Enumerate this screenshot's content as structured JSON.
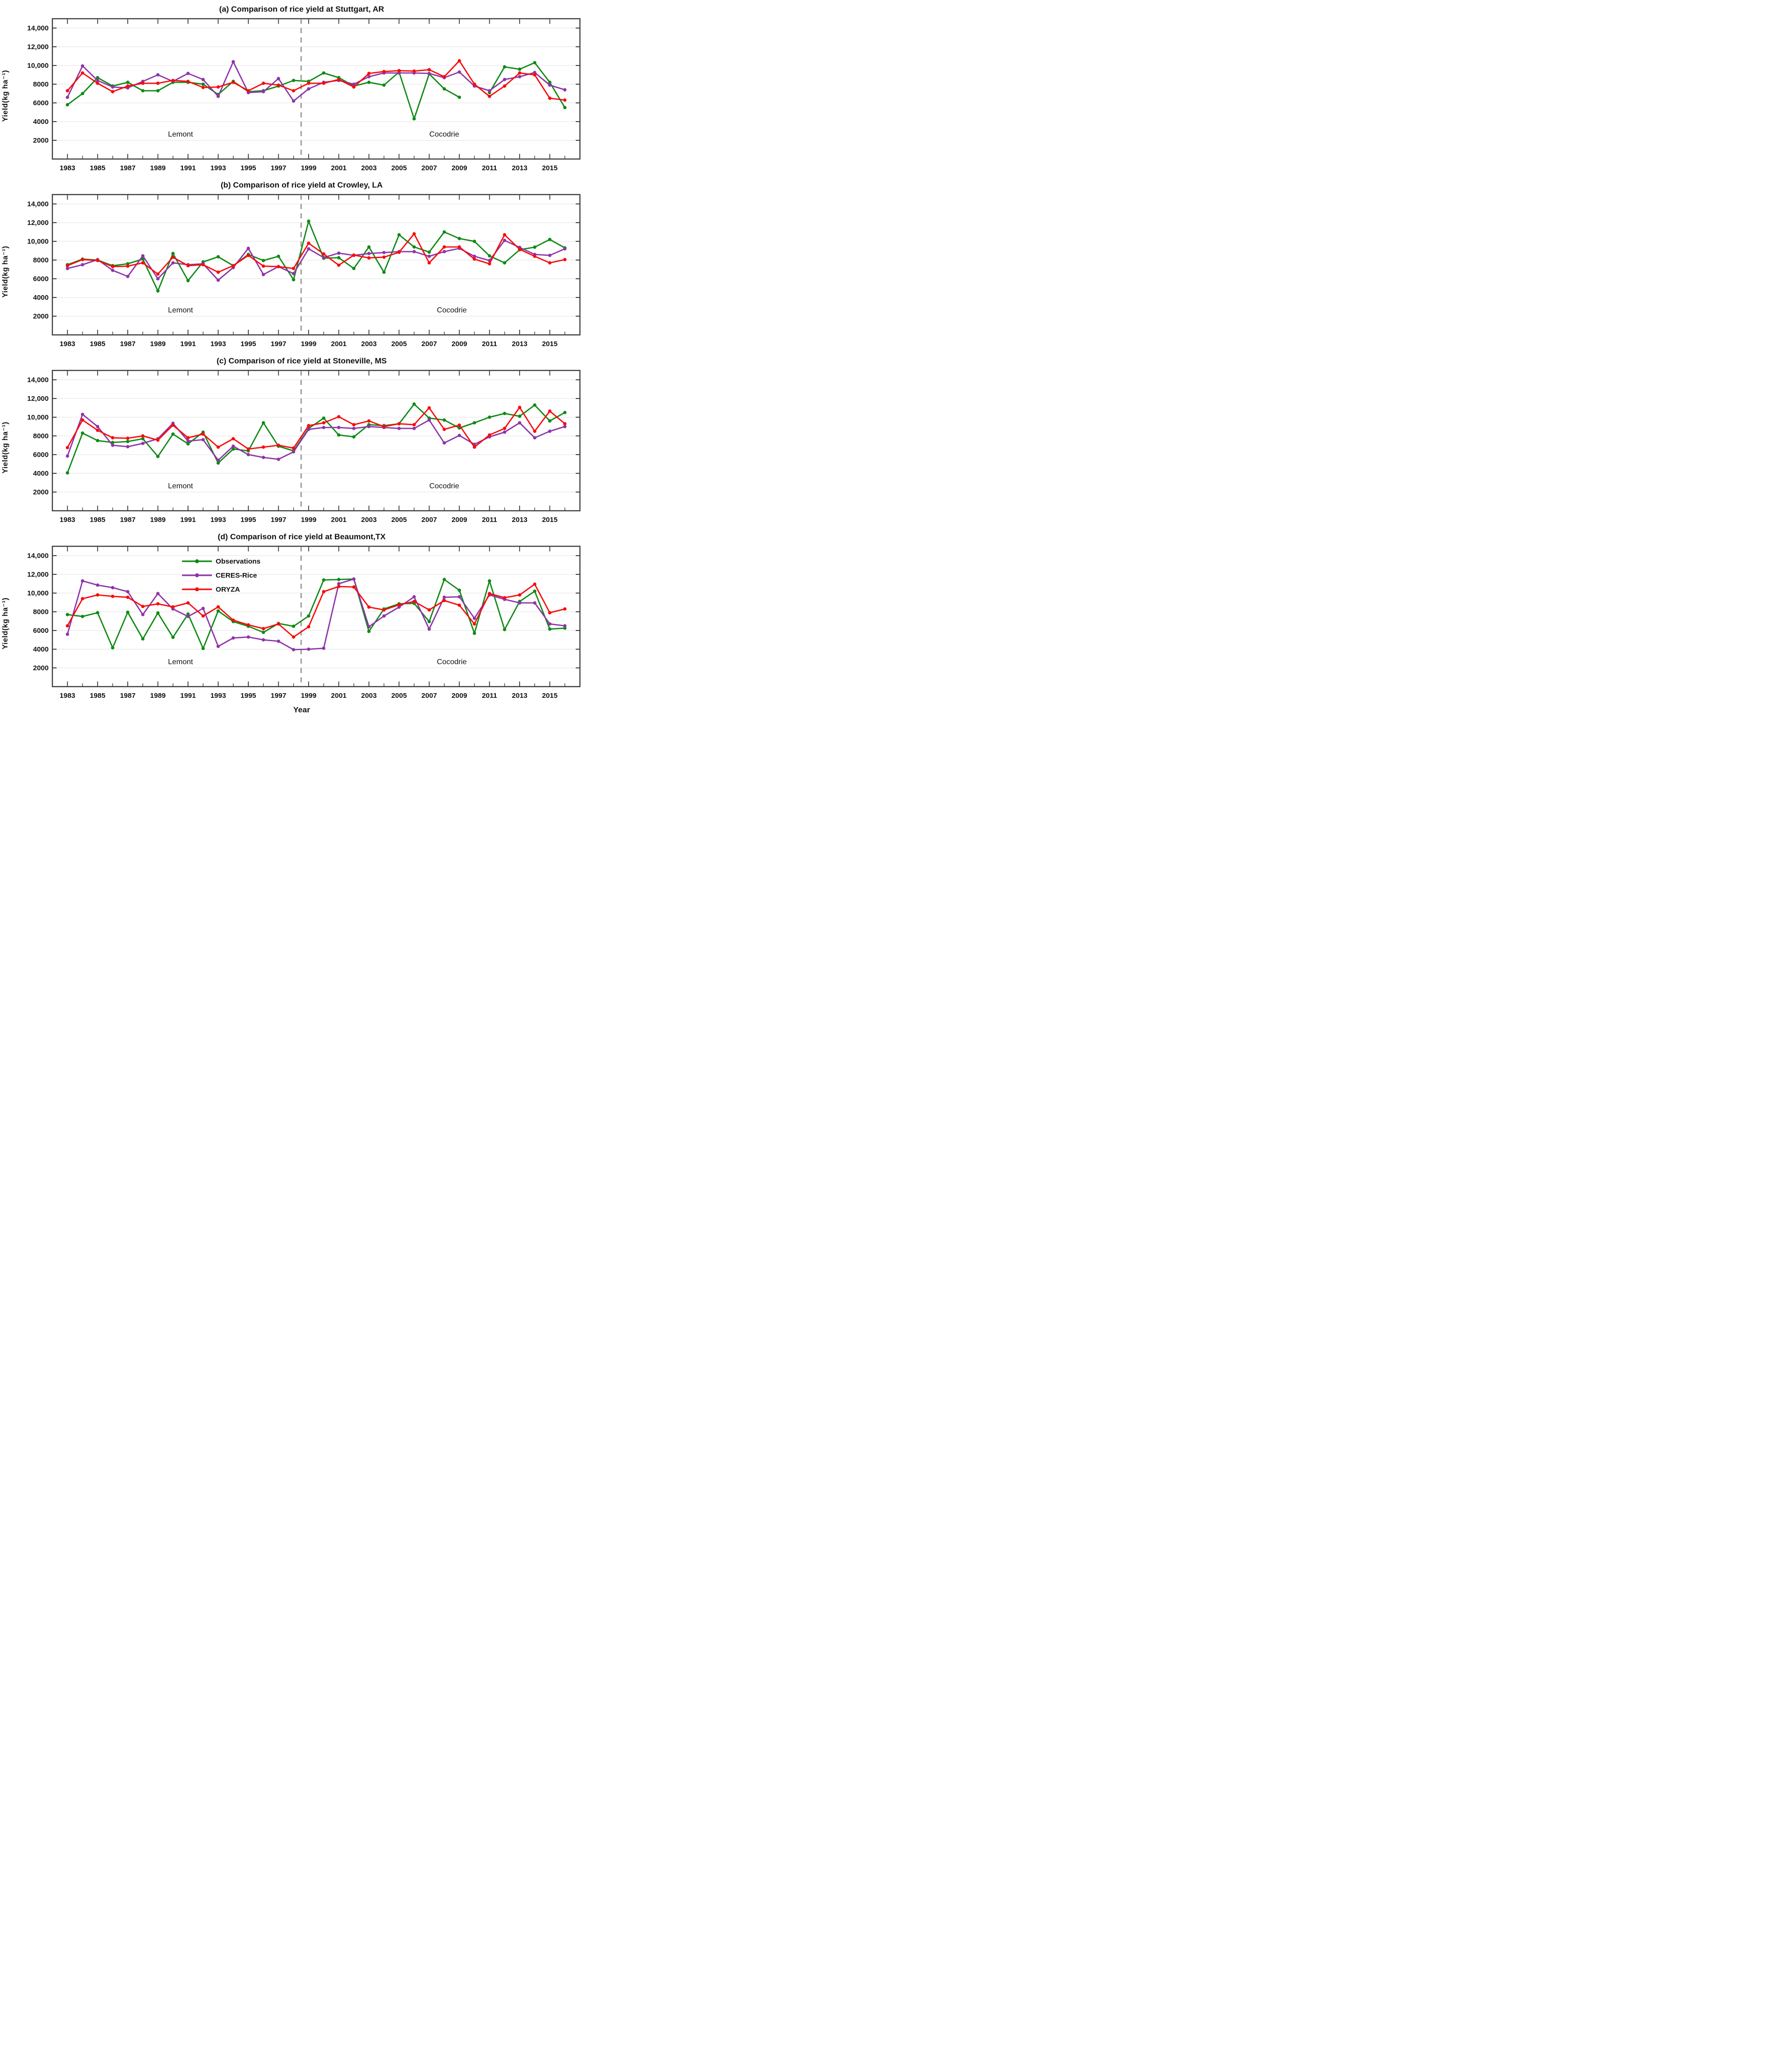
{
  "figure_xlabel": "Year",
  "colors": {
    "observations": "#0e8a14",
    "ceres": "#8e35a8",
    "oryza": "#f80b0b",
    "grid": "#ececec",
    "spine": "#3d3d3d",
    "dashed": "#666666",
    "text": "#111111"
  },
  "legend": {
    "entries": [
      {
        "label": "Observations",
        "color_key": "observations"
      },
      {
        "label": "CERES-Rice",
        "color_key": "ceres"
      },
      {
        "label": "ORYZA",
        "color_key": "oryza"
      }
    ]
  },
  "axis": {
    "ylabel": "Yield(kg ha⁻¹)",
    "ytick_values": [
      2000,
      4000,
      6000,
      8000,
      10000,
      12000,
      14000
    ],
    "ytick_labels": [
      "2000",
      "4000",
      "6000",
      "8000",
      "10,000",
      "12,000",
      "14,000"
    ],
    "xtick_years": [
      1983,
      1985,
      1987,
      1989,
      1991,
      1993,
      1995,
      1997,
      1999,
      2001,
      2003,
      2005,
      2007,
      2009,
      2011,
      2013,
      2015
    ],
    "ylim": [
      0,
      15000
    ],
    "xlim": [
      1982,
      2017
    ],
    "divider_year": 1998.5
  },
  "chart_data": [
    {
      "type": "line",
      "title": "(a) Comparison of rice yield at Stuttgart, AR",
      "ylabel": "Yield(kg ha⁻¹)",
      "annotations": [
        {
          "text": "Lemont",
          "year": 1990.5,
          "value": 2700
        },
        {
          "text": "Cocodrie",
          "year": 2008,
          "value": 2700
        }
      ],
      "x": [
        1983,
        1984,
        1985,
        1986,
        1987,
        1988,
        1989,
        1990,
        1991,
        1992,
        1993,
        1994,
        1995,
        1996,
        1997,
        1998,
        1999,
        2000,
        2001,
        2002,
        2003,
        2004,
        2005,
        2006,
        2007,
        2008,
        2009,
        2010,
        2011,
        2012,
        2013,
        2014,
        2015,
        2016
      ],
      "series": [
        {
          "name": "Observations",
          "color_key": "observations",
          "values": [
            5800,
            7000,
            8700,
            7800,
            8200,
            7300,
            7300,
            8200,
            8200,
            8000,
            6900,
            8300,
            7200,
            7300,
            7800,
            8400,
            8300,
            9200,
            8700,
            7800,
            8200,
            7900,
            9300,
            4300,
            9100,
            7500,
            6600,
            null,
            7100,
            9850,
            9600,
            10300,
            8200,
            5500
          ]
        },
        {
          "name": "CERES-Rice",
          "color_key": "ceres",
          "values": [
            6600,
            9950,
            8400,
            7700,
            7600,
            8300,
            9000,
            8300,
            9150,
            8500,
            6700,
            10400,
            7100,
            7200,
            8600,
            6200,
            7500,
            8200,
            8400,
            8000,
            8800,
            9200,
            9200,
            9200,
            9150,
            8700,
            9300,
            7800,
            7300,
            8500,
            8800,
            9250,
            7900,
            7400
          ]
        },
        {
          "name": "ORYZA",
          "color_key": "oryza",
          "values": [
            7300,
            9200,
            8100,
            7200,
            7800,
            8100,
            8100,
            8400,
            8300,
            7650,
            7700,
            8200,
            7300,
            8100,
            7900,
            7300,
            8100,
            8100,
            8500,
            7700,
            9150,
            9350,
            9450,
            9400,
            9550,
            8800,
            10500,
            8000,
            6700,
            7800,
            9200,
            9000,
            6500,
            6300
          ]
        }
      ]
    },
    {
      "type": "line",
      "title": "(b) Comparison of rice yield at Crowley, LA",
      "ylabel": "Yield(kg ha⁻¹)",
      "annotations": [
        {
          "text": "Lemont",
          "year": 1990.5,
          "value": 2700
        },
        {
          "text": "Cocodrie",
          "year": 2008.5,
          "value": 2700
        }
      ],
      "x": [
        1983,
        1984,
        1985,
        1986,
        1987,
        1988,
        1989,
        1990,
        1991,
        1992,
        1993,
        1994,
        1995,
        1996,
        1997,
        1998,
        1999,
        2000,
        2001,
        2002,
        2003,
        2004,
        2005,
        2006,
        2007,
        2008,
        2009,
        2010,
        2011,
        2012,
        2013,
        2014,
        2015,
        2016
      ],
      "series": [
        {
          "name": "Observations",
          "color_key": "observations",
          "values": [
            7500,
            8100,
            8000,
            7400,
            7600,
            8100,
            4700,
            8700,
            5800,
            7800,
            8350,
            7400,
            8600,
            7950,
            8400,
            5900,
            12150,
            8200,
            8250,
            7100,
            9400,
            6700,
            10700,
            9400,
            8850,
            11000,
            10300,
            10000,
            8450,
            7700,
            9100,
            9380,
            10200,
            9300
          ]
        },
        {
          "name": "CERES-Rice",
          "color_key": "ceres",
          "values": [
            7100,
            7500,
            8050,
            6900,
            6250,
            8450,
            6000,
            7700,
            7500,
            7600,
            5850,
            7200,
            9250,
            6450,
            7300,
            6550,
            9200,
            8270,
            8740,
            8500,
            8700,
            8800,
            8900,
            8900,
            8400,
            8900,
            9250,
            8400,
            7950,
            10100,
            9350,
            8600,
            8500,
            9200
          ]
        },
        {
          "name": "ORYZA",
          "color_key": "oryza",
          "values": [
            7400,
            8050,
            7950,
            7300,
            7350,
            7700,
            6500,
            8300,
            7400,
            7500,
            6700,
            7400,
            8500,
            7350,
            7300,
            7100,
            9800,
            8650,
            7450,
            8530,
            8230,
            8310,
            8830,
            10800,
            7700,
            9400,
            9400,
            8100,
            7600,
            10700,
            9150,
            8400,
            7700,
            8050
          ]
        }
      ]
    },
    {
      "type": "line",
      "title": "(c) Comparison of rice yield at Stoneville, MS",
      "ylabel": "Yield(kg ha⁻¹)",
      "annotations": [
        {
          "text": "Lemont",
          "year": 1990.5,
          "value": 2700
        },
        {
          "text": "Cocodrie",
          "year": 2008,
          "value": 2700
        }
      ],
      "x": [
        1983,
        1984,
        1985,
        1986,
        1987,
        1988,
        1989,
        1990,
        1991,
        1992,
        1993,
        1994,
        1995,
        1996,
        1997,
        1998,
        1999,
        2000,
        2001,
        2002,
        2003,
        2004,
        2005,
        2006,
        2007,
        2008,
        2009,
        2010,
        2011,
        2012,
        2013,
        2014,
        2015,
        2016
      ],
      "series": [
        {
          "name": "Observations",
          "color_key": "observations",
          "values": [
            4050,
            8300,
            7500,
            7300,
            7400,
            7700,
            5800,
            8200,
            7150,
            8400,
            5100,
            6600,
            6400,
            9400,
            6900,
            6400,
            8800,
            9900,
            8100,
            7900,
            9200,
            9100,
            9300,
            11400,
            9900,
            9700,
            8850,
            9400,
            10000,
            10400,
            10100,
            11300,
            9600,
            10500
          ]
        },
        {
          "name": "CERES-Rice",
          "color_key": "ceres",
          "values": [
            5850,
            10300,
            9000,
            7000,
            6850,
            7200,
            7700,
            9350,
            7450,
            7600,
            5400,
            6900,
            6000,
            5700,
            5500,
            6300,
            8700,
            8900,
            8900,
            8800,
            9000,
            8900,
            8800,
            8800,
            9700,
            7250,
            8050,
            7100,
            7900,
            8400,
            9400,
            7800,
            8500,
            9000
          ]
        },
        {
          "name": "ORYZA",
          "color_key": "oryza",
          "values": [
            6750,
            9700,
            8600,
            7800,
            7750,
            8000,
            7550,
            9150,
            7800,
            8200,
            6800,
            7700,
            6600,
            6800,
            7000,
            6700,
            9100,
            9400,
            10050,
            9200,
            9600,
            9000,
            9300,
            9200,
            11000,
            8700,
            9150,
            6800,
            8100,
            8800,
            11050,
            8500,
            10650,
            9300
          ]
        }
      ]
    },
    {
      "type": "line",
      "title": "(d) Comparison of rice yield at Beaumont,TX",
      "ylabel": "Yield(kg ha⁻¹)",
      "has_legend": true,
      "annotations": [
        {
          "text": "Lemont",
          "year": 1990.5,
          "value": 2700
        },
        {
          "text": "Cocodrie",
          "year": 2008.5,
          "value": 2700
        }
      ],
      "x": [
        1983,
        1984,
        1985,
        1986,
        1987,
        1988,
        1989,
        1990,
        1991,
        1992,
        1993,
        1994,
        1995,
        1996,
        1997,
        1998,
        1999,
        2000,
        2001,
        2002,
        2003,
        2004,
        2005,
        2006,
        2007,
        2008,
        2009,
        2010,
        2011,
        2012,
        2013,
        2014,
        2015,
        2016
      ],
      "series": [
        {
          "name": "Observations",
          "color_key": "observations",
          "values": [
            7700,
            7500,
            7900,
            4150,
            7950,
            5100,
            7870,
            5270,
            7760,
            4080,
            8090,
            6950,
            6450,
            5800,
            6750,
            6450,
            7550,
            11400,
            11450,
            11500,
            5900,
            8300,
            8850,
            8900,
            6950,
            11450,
            10300,
            5700,
            11300,
            6100,
            9100,
            10200,
            6150,
            6250
          ]
        },
        {
          "name": "CERES-Rice",
          "color_key": "ceres",
          "values": [
            5600,
            11300,
            10850,
            10580,
            10150,
            7700,
            9950,
            8300,
            7500,
            8360,
            4300,
            5200,
            5300,
            5000,
            4850,
            3950,
            4000,
            4100,
            11000,
            11500,
            6400,
            7550,
            8500,
            9600,
            6150,
            9550,
            9600,
            7300,
            9800,
            9330,
            8950,
            8950,
            6700,
            6500
          ]
        },
        {
          "name": "ORYZA",
          "color_key": "oryza",
          "values": [
            6500,
            9400,
            9800,
            9650,
            9550,
            8570,
            8850,
            8520,
            8950,
            7550,
            8520,
            7100,
            6600,
            6200,
            6700,
            5300,
            6400,
            10150,
            10700,
            10650,
            8500,
            8200,
            8750,
            9100,
            8200,
            9200,
            8700,
            6700,
            9950,
            9500,
            9800,
            10950,
            7900,
            8300
          ]
        }
      ]
    }
  ]
}
